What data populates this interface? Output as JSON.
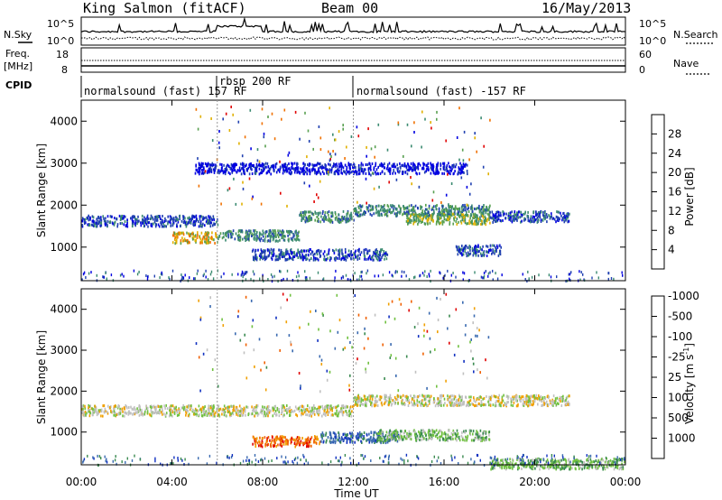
{
  "header": {
    "station": "King Salmon (fitACF)",
    "beam": "Beam 00",
    "date": "16/May/2013"
  },
  "status_panels": {
    "nsky_label": "N.Sky",
    "nsearch_label": "N.Search",
    "noise_ticks": [
      "10^5",
      "10^0"
    ],
    "freq_label": "Freq.",
    "freq_unit": "[MHz]",
    "freq_ticks": [
      "18",
      "8"
    ],
    "nave_label": "Nave",
    "nave_ticks": [
      "60",
      "0"
    ],
    "cpid_label": "CPID"
  },
  "cpid_segments": [
    {
      "label": "normalsound (fast) 157 RF",
      "start_hour": 0,
      "end_hour": 6
    },
    {
      "label": "rbsp 200 RF",
      "start_hour": 6,
      "end_hour": 12
    },
    {
      "label": "normalsound (fast) -157 RF",
      "start_hour": 12,
      "end_hour": 24
    }
  ],
  "axes": {
    "ylabel": "Slant Range [km]",
    "xlabel": "Time UT",
    "x_ticks": [
      "00:00",
      "04:00",
      "08:00",
      "12:00",
      "16:00",
      "20:00",
      "00:00"
    ],
    "y_ticks": [
      "1000",
      "2000",
      "3000",
      "4000"
    ]
  },
  "power_colorbar": {
    "label": "Power [dB]",
    "ticks": [
      "4",
      "8",
      "12",
      "16",
      "20",
      "24",
      "28"
    ],
    "colors": [
      "#0000e0",
      "#2040b0",
      "#3a8a70",
      "#58a050",
      "#e0b000",
      "#f07000",
      "#e00000"
    ]
  },
  "velocity_colorbar": {
    "label": "Velocity [m s",
    "label_sup": "-1",
    "label_end": "]",
    "ticks": [
      "1000",
      "500",
      "100",
      "25",
      "-25",
      "-100",
      "-500",
      "-1000"
    ],
    "colors": [
      "#1030c0",
      "#3a6ab0",
      "#3a8a50",
      "#70c040",
      "#c0c0c0",
      "#f0a000",
      "#f06000",
      "#e00000"
    ]
  },
  "chart_data": [
    {
      "type": "heatmap",
      "title": "",
      "xlabel": "",
      "ylabel": "Slant Range [km]",
      "xlim": [
        0,
        24
      ],
      "ylim": [
        200,
        4500
      ],
      "colorbar": "Power [dB]",
      "features": [
        {
          "start": 0,
          "end": 6,
          "range": 1650,
          "power": 9
        },
        {
          "start": 4,
          "end": 6,
          "range": 1250,
          "power": 20
        },
        {
          "start": 6,
          "end": 9.6,
          "range": 1300,
          "power": 12
        },
        {
          "start": 9.6,
          "end": 12,
          "range": 1750,
          "power": 12
        },
        {
          "start": 12,
          "end": 18,
          "range": 1900,
          "power": 10
        },
        {
          "start": 14.3,
          "end": 18,
          "range": 1700,
          "power": 16
        },
        {
          "start": 18,
          "end": 21.5,
          "range": 1750,
          "power": 6
        },
        {
          "start": 7.5,
          "end": 13.5,
          "range": 850,
          "power": 8
        },
        {
          "start": 16.5,
          "end": 18.5,
          "range": 950,
          "power": 8
        },
        {
          "start": 5,
          "end": 17,
          "range": 2900,
          "power": 4
        }
      ]
    },
    {
      "type": "heatmap",
      "title": "",
      "xlabel": "Time UT",
      "ylabel": "Slant Range [km]",
      "xlim": [
        0,
        24
      ],
      "ylim": [
        200,
        4500
      ],
      "colorbar": "Velocity [m s-1]",
      "features": [
        {
          "start": 0,
          "end": 12,
          "range": 1550,
          "velocity": 0
        },
        {
          "start": 12,
          "end": 21.5,
          "range": 1800,
          "velocity": 0
        },
        {
          "start": 7.5,
          "end": 10.5,
          "range": 800,
          "velocity": -150
        },
        {
          "start": 10.5,
          "end": 14,
          "range": 900,
          "velocity": 120
        },
        {
          "start": 13,
          "end": 18,
          "range": 950,
          "velocity": 100
        },
        {
          "start": 18,
          "end": 24,
          "range": 250,
          "velocity": 80
        }
      ]
    }
  ]
}
